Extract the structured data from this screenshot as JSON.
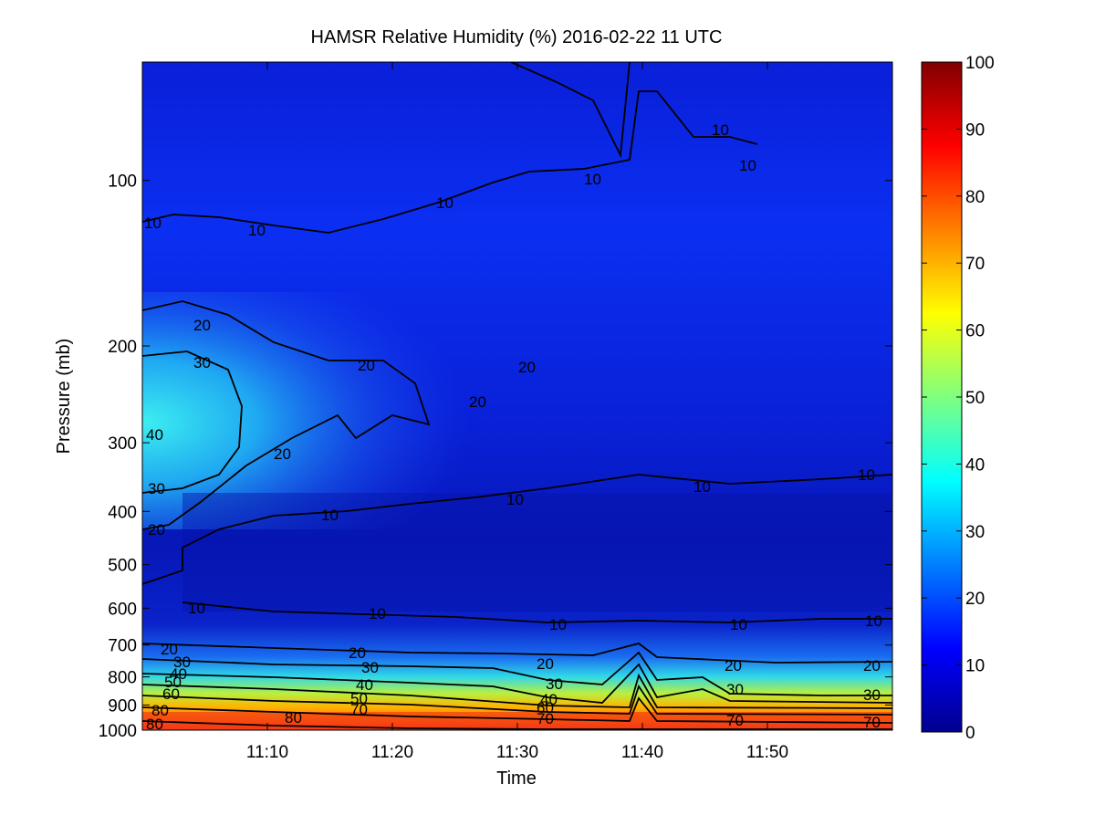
{
  "chart_data": {
    "type": "heatmap",
    "title": "HAMSR  Relative Humidity (%) 2016-02-22 11 UTC",
    "xlabel": "Time",
    "ylabel": "Pressure (mb)",
    "x_ticks": [
      "11:10",
      "11:20",
      "11:30",
      "11:40",
      "11:50"
    ],
    "y_ticks": [
      "100",
      "200",
      "300",
      "400",
      "500",
      "600",
      "700",
      "800",
      "900",
      "1000"
    ],
    "y_scale": "log",
    "colorbar": {
      "label_values": [
        "0",
        "10",
        "20",
        "30",
        "40",
        "50",
        "60",
        "70",
        "80",
        "90",
        "100"
      ],
      "range": [
        0,
        100
      ],
      "colormap": "jet"
    },
    "contour_levels": [
      10,
      20,
      30,
      40,
      50,
      60,
      70,
      80
    ]
  },
  "contour_label_text": {
    "l10": "10",
    "l20": "20",
    "l30": "30",
    "l40": "40",
    "l50": "50",
    "l60": "60",
    "l70": "70",
    "l80": "80"
  },
  "colors": {
    "jet_dark_blue": "#00008f",
    "jet_blue": "#0000ff",
    "jet_cyan": "#00ffff",
    "jet_yellow": "#ffff00",
    "jet_red": "#ff0000",
    "jet_dark_red": "#800000",
    "contour": "#000000"
  }
}
